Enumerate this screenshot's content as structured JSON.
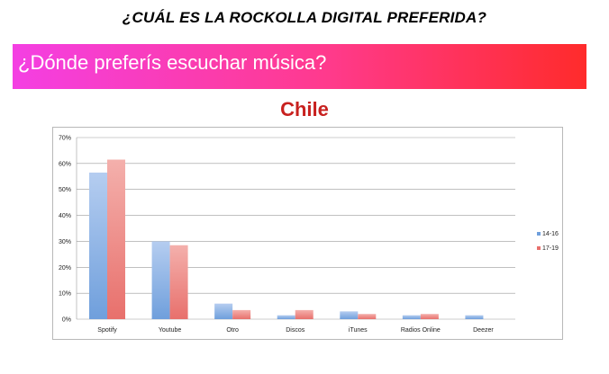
{
  "header": {
    "title": "¿CUÁL ES LA ROCKOLLA DIGITAL PREFERIDA?",
    "banner_text": "¿Dónde preferís escuchar música?"
  },
  "colors": {
    "banner_start": "#f43fe3",
    "banner_end": "#ff2b2b",
    "chart_title": "#c8211f",
    "series_14_16": "#6f9fdc",
    "series_17_19": "#e8706c"
  },
  "chart_data": {
    "type": "bar",
    "title": "Chile",
    "categories": [
      "Spotify",
      "Youtube",
      "Otro",
      "Discos",
      "iTunes",
      "Radios Online",
      "Deezer"
    ],
    "series": [
      {
        "name": "14-16",
        "values": [
          56.5,
          30,
          6,
          1.5,
          3,
          1.5,
          1.5
        ]
      },
      {
        "name": "17-19",
        "values": [
          61.5,
          28.5,
          3.5,
          3.5,
          2,
          2,
          0
        ]
      }
    ],
    "ylim": [
      0,
      70
    ],
    "yticks": [
      "0%",
      "10%",
      "20%",
      "30%",
      "40%",
      "50%",
      "60%",
      "70%"
    ],
    "grid": true,
    "legend": "right"
  }
}
